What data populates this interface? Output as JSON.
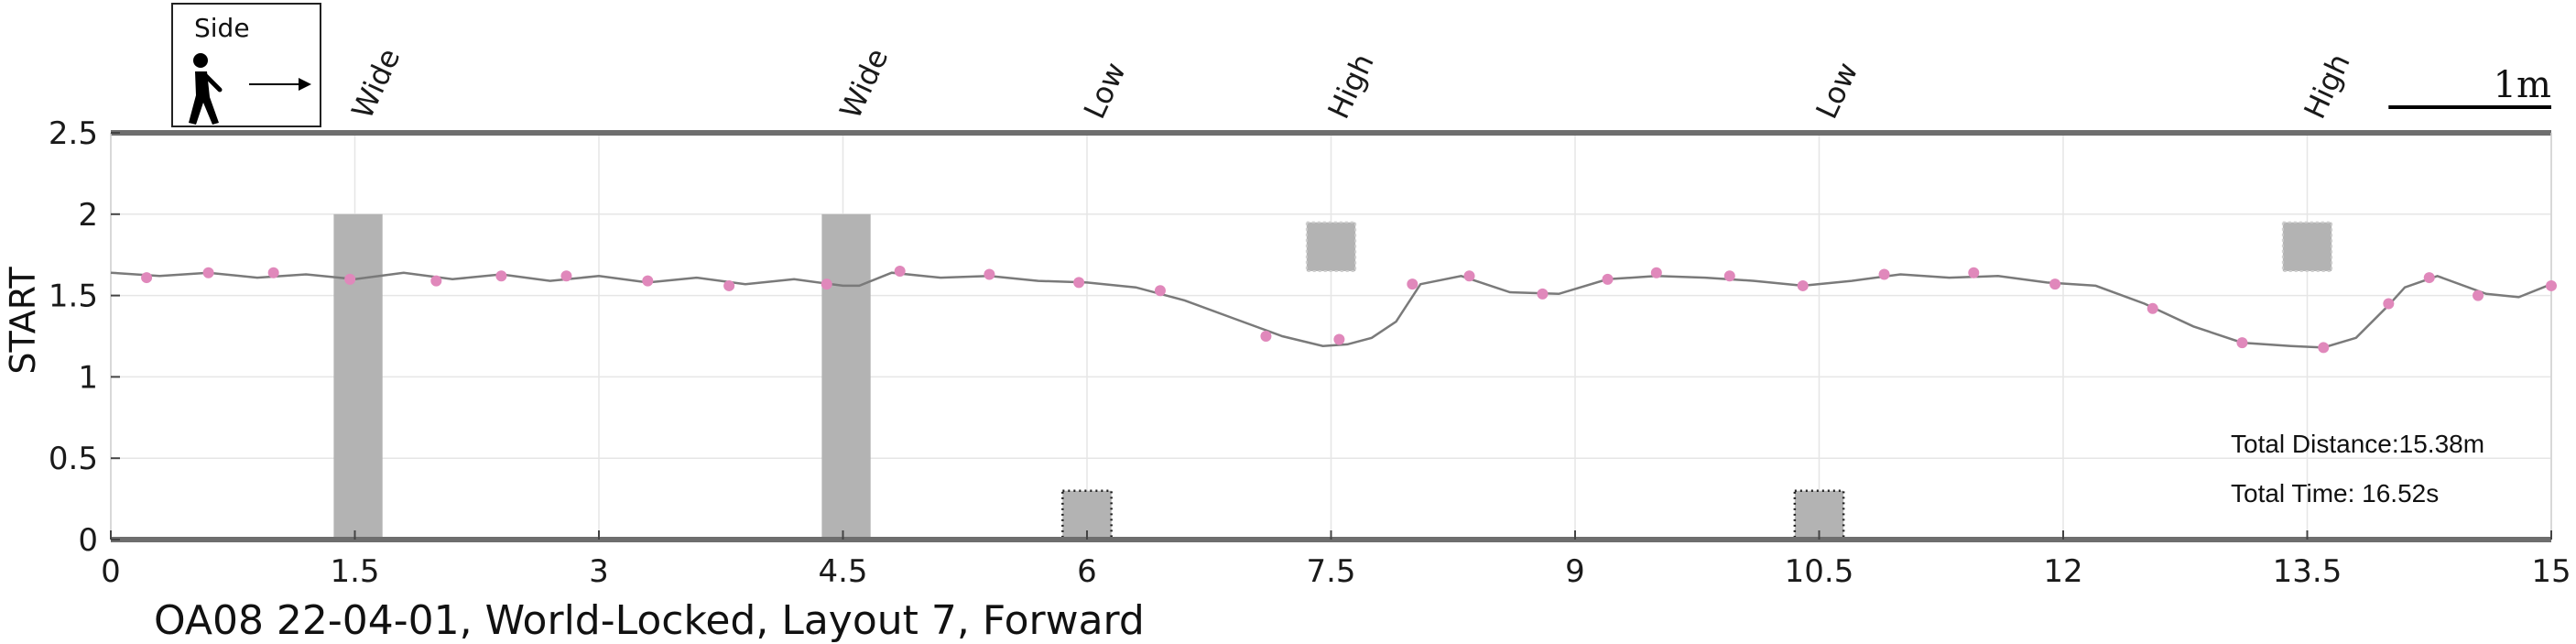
{
  "chart_data": {
    "type": "line",
    "title": "",
    "xlabel": "",
    "ylabel": "START",
    "xlim": [
      0,
      15
    ],
    "ylim": [
      0,
      2.5
    ],
    "x_ticks": [
      "0",
      "1.5",
      "3",
      "4.5",
      "6",
      "7.5",
      "9",
      "10.5",
      "12",
      "13.5",
      "15"
    ],
    "y_ticks": [
      "0",
      "0.5",
      "1",
      "1.5",
      "2",
      "2.5"
    ],
    "grid": true,
    "caption": "OA08 22-04-01, World-Locked, Layout 7, Forward",
    "legend": {
      "label": "Side",
      "icon": "walking-person-arrow-icon",
      "placement": "top-left"
    },
    "scale_bar": {
      "label": "1m",
      "length": 1
    },
    "info": {
      "distance": "Total Distance:15.38m",
      "time": "Total Time: 16.52s"
    },
    "line": {
      "x": [
        0,
        0.3,
        0.6,
        0.9,
        1.2,
        1.5,
        1.8,
        2.1,
        2.4,
        2.7,
        3.0,
        3.3,
        3.6,
        3.9,
        4.2,
        4.5,
        4.6,
        4.8,
        5.1,
        5.4,
        5.7,
        6.0,
        6.3,
        6.6,
        6.9,
        7.2,
        7.45,
        7.6,
        7.75,
        7.9,
        8.05,
        8.3,
        8.6,
        8.9,
        9.2,
        9.5,
        9.8,
        10.1,
        10.4,
        10.7,
        11.0,
        11.3,
        11.6,
        11.9,
        12.2,
        12.5,
        12.8,
        13.1,
        13.4,
        13.6,
        13.8,
        14.0,
        14.1,
        14.3,
        14.6,
        14.8,
        15.0
      ],
      "y": [
        1.64,
        1.62,
        1.64,
        1.61,
        1.63,
        1.6,
        1.64,
        1.6,
        1.63,
        1.59,
        1.62,
        1.58,
        1.61,
        1.57,
        1.6,
        1.56,
        1.56,
        1.64,
        1.61,
        1.62,
        1.59,
        1.58,
        1.55,
        1.47,
        1.36,
        1.25,
        1.19,
        1.2,
        1.24,
        1.34,
        1.57,
        1.62,
        1.52,
        1.51,
        1.6,
        1.62,
        1.61,
        1.59,
        1.56,
        1.59,
        1.63,
        1.61,
        1.62,
        1.58,
        1.56,
        1.45,
        1.31,
        1.21,
        1.19,
        1.18,
        1.24,
        1.44,
        1.55,
        1.62,
        1.51,
        1.49,
        1.57
      ],
      "color": "#7a7a7a"
    },
    "points": {
      "x": [
        0.22,
        0.6,
        1.0,
        1.47,
        2.0,
        2.4,
        2.8,
        3.3,
        3.8,
        4.4,
        4.85,
        5.4,
        5.95,
        6.45,
        7.1,
        7.55,
        8.0,
        8.35,
        8.8,
        9.2,
        9.5,
        9.95,
        10.4,
        10.9,
        11.45,
        11.95,
        12.55,
        13.1,
        13.6,
        14.0,
        14.25,
        14.55,
        15.0
      ],
      "y": [
        1.61,
        1.64,
        1.64,
        1.6,
        1.59,
        1.62,
        1.62,
        1.59,
        1.56,
        1.57,
        1.65,
        1.63,
        1.58,
        1.53,
        1.25,
        1.23,
        1.57,
        1.62,
        1.51,
        1.6,
        1.64,
        1.62,
        1.56,
        1.63,
        1.64,
        1.57,
        1.42,
        1.21,
        1.18,
        1.45,
        1.61,
        1.5,
        1.56
      ],
      "color": "#e088bb"
    },
    "obstacles": [
      {
        "kind": "wide",
        "label": "Wide",
        "x": [
          1.37,
          1.67
        ],
        "y": [
          0,
          2.0
        ],
        "style": "solid",
        "color": "#b3b3b3"
      },
      {
        "kind": "wide",
        "label": "Wide",
        "x": [
          4.37,
          4.67
        ],
        "y": [
          0,
          2.0
        ],
        "style": "solid",
        "color": "#b3b3b3"
      },
      {
        "kind": "low",
        "label": "Low",
        "x": [
          5.85,
          6.15
        ],
        "y": [
          0,
          0.3
        ],
        "style": "dotted",
        "color": "#b3b3b3"
      },
      {
        "kind": "high",
        "label": "High",
        "x": [
          7.35,
          7.65
        ],
        "y": [
          1.65,
          1.95
        ],
        "style": "dashed",
        "color": "#b3b3b3"
      },
      {
        "kind": "low",
        "label": "Low",
        "x": [
          10.35,
          10.65
        ],
        "y": [
          0,
          0.3
        ],
        "style": "dotted",
        "color": "#b3b3b3"
      },
      {
        "kind": "high",
        "label": "High",
        "x": [
          13.35,
          13.65
        ],
        "y": [
          1.65,
          1.95
        ],
        "style": "dashed",
        "color": "#b3b3b3"
      }
    ],
    "annotation_x": [
      1.5,
      4.5,
      6.0,
      7.5,
      10.5,
      13.5
    ]
  }
}
